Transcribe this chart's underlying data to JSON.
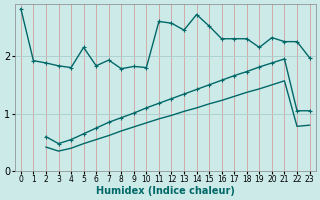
{
  "xlabel": "Humidex (Indice chaleur)",
  "bg_color": "#cceae8",
  "line_color": "#006868",
  "xlim": [
    -0.5,
    23.5
  ],
  "ylim": [
    0,
    2.9
  ],
  "yticks": [
    0,
    1,
    2
  ],
  "xticks": [
    0,
    1,
    2,
    3,
    4,
    5,
    6,
    7,
    8,
    9,
    10,
    11,
    12,
    13,
    14,
    15,
    16,
    17,
    18,
    19,
    20,
    21,
    22,
    23
  ],
  "line1_x": [
    0,
    1,
    2,
    3,
    4,
    5,
    6,
    7,
    8,
    9,
    10,
    11,
    12,
    13,
    14,
    15,
    16,
    17,
    18,
    19,
    20,
    21,
    22,
    23
  ],
  "line1_y": [
    2.82,
    1.92,
    1.88,
    1.83,
    1.8,
    2.15,
    1.83,
    1.93,
    1.78,
    1.82,
    1.8,
    2.6,
    2.57,
    2.45,
    2.72,
    2.52,
    2.3,
    2.3,
    2.3,
    2.15,
    2.32,
    2.25,
    2.25,
    1.97
  ],
  "line2_x": [
    2,
    3,
    4,
    5,
    6,
    7,
    8,
    9,
    10,
    11,
    12,
    13,
    14,
    15,
    16,
    17,
    18,
    19,
    20,
    21,
    22,
    23
  ],
  "line2_y": [
    0.6,
    0.48,
    0.55,
    0.65,
    0.75,
    0.85,
    0.93,
    1.01,
    1.1,
    1.18,
    1.26,
    1.34,
    1.42,
    1.5,
    1.58,
    1.66,
    1.73,
    1.81,
    1.88,
    1.95,
    1.05,
    1.05
  ],
  "line3_x": [
    2,
    3,
    4,
    5,
    6,
    7,
    8,
    9,
    10,
    11,
    12,
    13,
    14,
    15,
    16,
    17,
    18,
    19,
    20,
    21,
    22,
    23
  ],
  "line3_y": [
    0.42,
    0.35,
    0.4,
    0.48,
    0.55,
    0.62,
    0.7,
    0.77,
    0.84,
    0.91,
    0.97,
    1.04,
    1.1,
    1.17,
    1.23,
    1.3,
    1.37,
    1.43,
    1.5,
    1.57,
    0.78,
    0.8
  ]
}
